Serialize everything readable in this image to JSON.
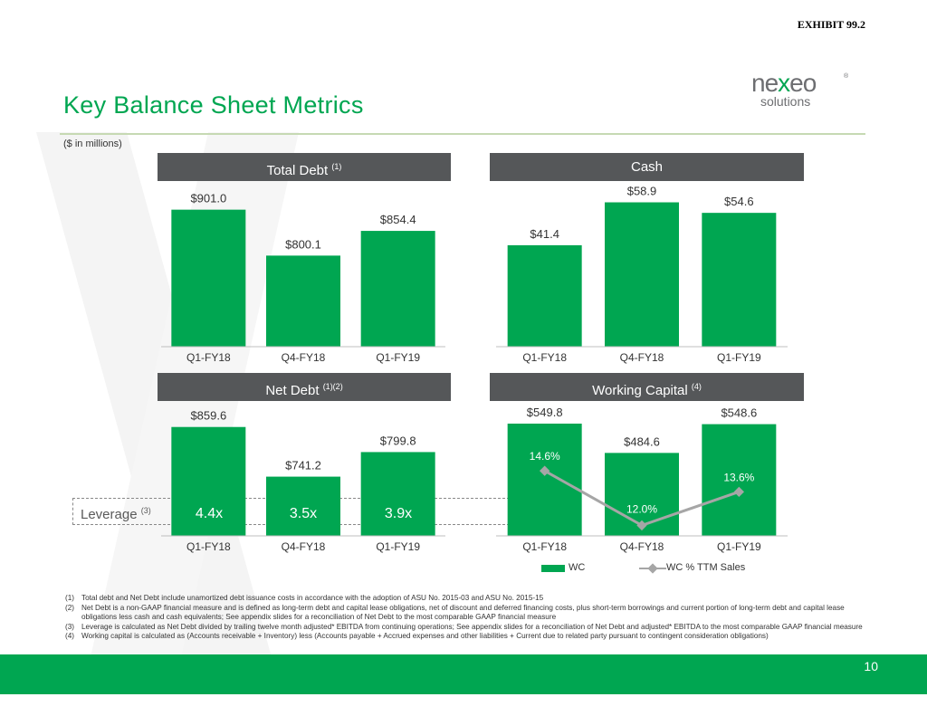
{
  "exhibit": "EXHIBIT 99.2",
  "title": "Key Balance Sheet Metrics",
  "logo": {
    "main_prefix": "ne",
    "main_x": "x",
    "main_suffix": "eo",
    "sub": "solutions",
    "reg": "®"
  },
  "units_note": "($ in millions)",
  "colors": {
    "accent": "#00a651",
    "header_bg": "#555759",
    "line": "#a6a6a6"
  },
  "panels": {
    "total_debt": {
      "title": "Total Debt",
      "sup": "(1)"
    },
    "cash": {
      "title": "Cash",
      "sup": ""
    },
    "net_debt": {
      "title": "Net Debt",
      "sup": "(1)(2)"
    },
    "working_capital": {
      "title": "Working Capital",
      "sup": "(4)"
    }
  },
  "leverage": {
    "label": "Leverage",
    "sup": "(3)",
    "values": [
      "4.4x",
      "3.5x",
      "3.9x"
    ]
  },
  "legend": {
    "bar": "WC",
    "line": "WC % TTM Sales"
  },
  "chart_data": [
    {
      "id": "total_debt",
      "type": "bar",
      "title": "Total Debt (1)",
      "categories": [
        "Q1-FY18",
        "Q4-FY18",
        "Q1-FY19"
      ],
      "values": [
        901.0,
        800.1,
        854.4
      ],
      "labels": [
        "$901.0",
        "$800.1",
        "$854.4"
      ],
      "ylim": [
        600,
        950
      ],
      "unit": "$ in millions"
    },
    {
      "id": "cash",
      "type": "bar",
      "title": "Cash",
      "categories": [
        "Q1-FY18",
        "Q4-FY18",
        "Q1-FY19"
      ],
      "values": [
        41.4,
        58.9,
        54.6
      ],
      "labels": [
        "$41.4",
        "$58.9",
        "$54.6"
      ],
      "ylim": [
        0,
        65
      ],
      "unit": "$ in millions"
    },
    {
      "id": "net_debt",
      "type": "bar",
      "title": "Net Debt (1)(2)",
      "categories": [
        "Q1-FY18",
        "Q4-FY18",
        "Q1-FY19"
      ],
      "values": [
        859.6,
        741.2,
        799.8
      ],
      "labels": [
        "$859.6",
        "$741.2",
        "$799.8"
      ],
      "ylim": [
        600,
        900
      ],
      "unit": "$ in millions"
    },
    {
      "id": "working_capital",
      "type": "bar",
      "title": "Working Capital (4)",
      "categories": [
        "Q1-FY18",
        "Q4-FY18",
        "Q1-FY19"
      ],
      "values": [
        549.8,
        484.6,
        548.6
      ],
      "labels": [
        "$549.8",
        "$484.6",
        "$548.6"
      ],
      "ylim": [
        300,
        580
      ],
      "unit": "$ in millions",
      "line_series": {
        "name": "WC % TTM Sales",
        "values": [
          14.6,
          12.0,
          13.6
        ],
        "labels": [
          "14.6%",
          "12.0%",
          "13.6%"
        ],
        "ylim": [
          11.5,
          17.5
        ]
      }
    }
  ],
  "footnotes": [
    {
      "num": "(1)",
      "text": "Total debt and Net Debt include unamortized debt issuance costs in accordance with the adoption of ASU No. 2015-03 and ASU No. 2015-15"
    },
    {
      "num": "(2)",
      "text": "Net Debt is a non-GAAP financial measure and is defined as long-term debt and capital lease obligations, net of discount and deferred financing costs, plus short-term borrowings and current portion of long-term debt and capital lease obligations less cash and cash equivalents; See appendix slides for a reconciliation of Net Debt to the most comparable GAAP financial measure"
    },
    {
      "num": "(3)",
      "text": "Leverage is calculated as Net Debt divided by trailing twelve month adjusted* EBITDA from continuing operations; See appendix slides for a reconciliation of Net Debt and adjusted* EBITDA to the most comparable GAAP financial measure"
    },
    {
      "num": "(4)",
      "text": "Working capital is calculated as (Accounts receivable + Inventory) less (Accounts payable + Accrued expenses and other liabilities + Current due to related party pursuant to contingent consideration obligations)"
    }
  ],
  "page_number": "10"
}
